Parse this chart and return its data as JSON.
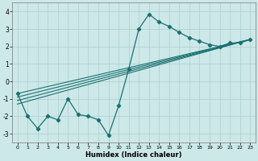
{
  "title": "",
  "xlabel": "Humidex (Indice chaleur)",
  "xlim": [
    -0.5,
    23.5
  ],
  "ylim": [
    -3.5,
    4.5
  ],
  "xticks": [
    0,
    1,
    2,
    3,
    4,
    5,
    6,
    7,
    8,
    9,
    10,
    11,
    12,
    13,
    14,
    15,
    16,
    17,
    18,
    19,
    20,
    21,
    22,
    23
  ],
  "yticks": [
    -3,
    -2,
    -1,
    0,
    1,
    2,
    3,
    4
  ],
  "bg_color": "#cde8e8",
  "grid_color": "#aacece",
  "line_color": "#1a7070",
  "main_line": {
    "x": [
      0,
      1,
      2,
      3,
      4,
      5,
      6,
      7,
      8,
      9,
      10,
      11,
      12,
      13,
      14,
      15,
      16,
      17,
      18,
      19,
      20,
      21,
      22,
      23
    ],
    "y": [
      -0.7,
      -2.0,
      -2.7,
      -2.0,
      -2.2,
      -1.0,
      -1.9,
      -2.0,
      -2.2,
      -3.1,
      -1.4,
      0.7,
      3.0,
      3.85,
      3.4,
      3.15,
      2.8,
      2.5,
      2.3,
      2.1,
      2.0,
      2.2,
      2.2,
      2.4
    ]
  },
  "trend_lines": [
    {
      "x": [
        0,
        23
      ],
      "y": [
        -0.7,
        2.4
      ]
    },
    {
      "x": [
        0,
        23
      ],
      "y": [
        -0.9,
        2.4
      ]
    },
    {
      "x": [
        0,
        23
      ],
      "y": [
        -1.1,
        2.4
      ]
    },
    {
      "x": [
        0,
        23
      ],
      "y": [
        -1.3,
        2.4
      ]
    }
  ]
}
